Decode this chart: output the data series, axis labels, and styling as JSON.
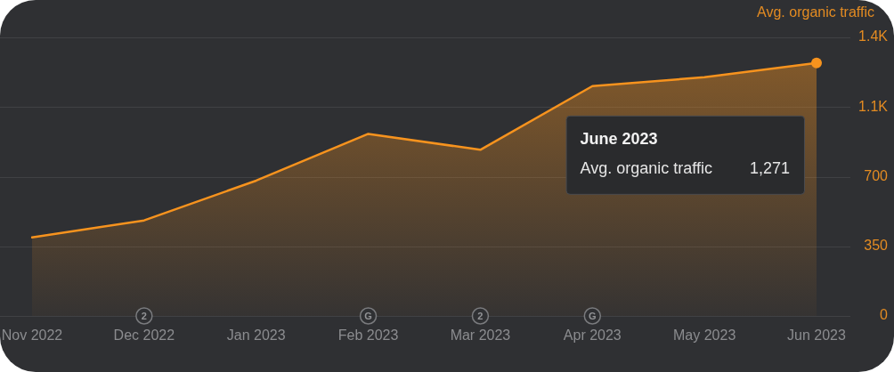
{
  "chart_data": {
    "type": "area",
    "ylabel": "Avg. organic traffic",
    "categories": [
      "Nov 2022",
      "Dec 2022",
      "Jan 2023",
      "Feb 2023",
      "Mar 2023",
      "Apr 2023",
      "May 2023",
      "Jun 2023"
    ],
    "series": [
      {
        "color": "#f7931e",
        "values": [
          395,
          480,
          680,
          915,
          835,
          1155,
          1200,
          1271
        ]
      }
    ],
    "ylim": [
      0,
      1400
    ],
    "yticks": [
      0,
      350,
      700,
      {
        "value": 1050,
        "label": "1.1K"
      },
      {
        "value": 1400,
        "label": "1.4K"
      }
    ],
    "grid": "y",
    "annotations": [
      {
        "text": "2",
        "x": "Dec 2022",
        "y": 0
      },
      {
        "text": "G",
        "x": "Feb 2023",
        "y": 0
      },
      {
        "text": "2",
        "x": "Mar 2023",
        "y": 0
      },
      {
        "text": "G",
        "x": "Apr 2023",
        "y": 0
      },
      "June 2023",
      "Avg. organic traffic",
      "1,271"
    ]
  }
}
